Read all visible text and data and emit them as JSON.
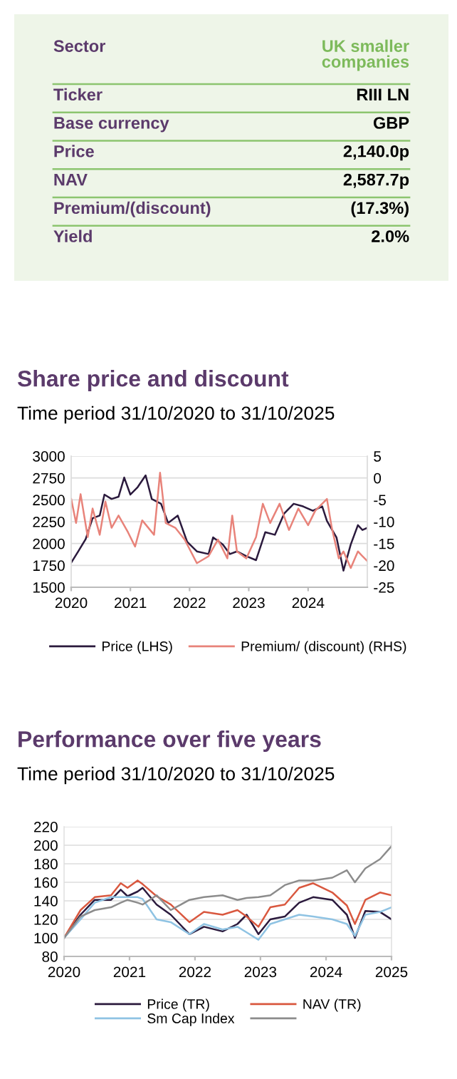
{
  "chart_data": [
    {
      "type": "other",
      "categories": [
        "Sector",
        "Ticker",
        "Base currency",
        "Price",
        "NAV",
        "Premium/(discount)",
        "Yield"
      ],
      "value_labels": [
        "UK smaller\ncompanies",
        "RIII LN",
        "GBP",
        "2,140.0p",
        "2,587.7p",
        "(17.3%)",
        "2.0%"
      ]
    },
    {
      "type": "line",
      "title": "Share price and discount",
      "subtitle": "Time period 31/10/2020 to 31/10/2025",
      "xlim": [
        "2020-10-31",
        "2025-10-31"
      ],
      "xticks": [
        {
          "value": "2020-10-31",
          "label": "2020"
        },
        {
          "value": "2021-10-31",
          "label": "2021"
        },
        {
          "value": "2022-10-31",
          "label": "2022"
        },
        {
          "value": "2023-10-31",
          "label": "2023"
        },
        {
          "value": "2024-10-31",
          "label": "2024"
        }
      ],
      "ylim": [
        1500,
        3000
      ],
      "yticks": [
        1500,
        1750,
        2000,
        2250,
        2500,
        2750,
        3000
      ],
      "y2lim": [
        -25,
        5
      ],
      "y2ticks": [
        -25,
        -20,
        -15,
        -10,
        -5,
        0,
        5
      ],
      "grid": "y",
      "legend": "bottom",
      "series": [
        {
          "name": "Price (LHS)",
          "color": "#2b1a3d",
          "x": [
            "2020-10-31",
            "2020-12-15",
            "2021-01-28",
            "2021-03-12",
            "2021-04-25",
            "2021-05-24",
            "2021-07-07",
            "2021-08-19",
            "2021-09-23",
            "2021-10-31",
            "2021-12-15",
            "2022-02-02",
            "2022-03-12",
            "2022-05-08",
            "2022-06-21",
            "2022-08-19",
            "2022-10-16",
            "2022-12-15",
            "2023-02-25",
            "2023-03-25",
            "2023-05-24",
            "2023-07-07",
            "2023-08-19",
            "2023-10-16",
            "2023-12-15",
            "2024-02-10",
            "2024-04-09",
            "2024-06-06",
            "2024-08-03",
            "2024-09-30",
            "2024-11-29",
            "2025-01-26",
            "2025-02-24",
            "2025-04-24",
            "2025-06-06",
            "2025-07-21",
            "2025-09-03",
            "2025-10-01",
            "2025-10-31"
          ],
          "values": [
            1780,
            1915,
            2050,
            2290,
            2320,
            2560,
            2510,
            2535,
            2755,
            2560,
            2645,
            2780,
            2510,
            2455,
            2235,
            2320,
            2020,
            1910,
            1880,
            2070,
            1990,
            1880,
            1910,
            1855,
            1810,
            2130,
            2100,
            2345,
            2455,
            2425,
            2375,
            2425,
            2260,
            2070,
            1690,
            1990,
            2210,
            2155,
            2180
          ]
        },
        {
          "name": "Premium/ (discount) (RHS)",
          "color": "#e8837a",
          "axis": "y2",
          "x": [
            "2020-10-31",
            "2020-11-30",
            "2020-12-28",
            "2021-02-10",
            "2021-03-12",
            "2021-04-25",
            "2021-05-30",
            "2021-07-07",
            "2021-08-19",
            "2021-10-16",
            "2021-11-29",
            "2022-01-12",
            "2022-03-26",
            "2022-05-02",
            "2022-06-06",
            "2022-08-04",
            "2022-10-01",
            "2022-12-15",
            "2023-02-25",
            "2023-04-24",
            "2023-06-21",
            "2023-07-21",
            "2023-08-19",
            "2023-10-16",
            "2023-12-15",
            "2024-01-26",
            "2024-03-11",
            "2024-05-08",
            "2024-07-05",
            "2024-09-01",
            "2024-10-31",
            "2024-12-14",
            "2025-02-24",
            "2025-03-26",
            "2025-05-08",
            "2025-06-06",
            "2025-07-21",
            "2025-09-03",
            "2025-10-01",
            "2025-10-31"
          ],
          "values": [
            -4.8,
            -10.3,
            -3.7,
            -13.5,
            -7.0,
            -13.0,
            -5.4,
            -11.4,
            -8.6,
            -12.4,
            -15.7,
            -9.7,
            -13.0,
            1.2,
            -10.3,
            -11.4,
            -14.1,
            -19.5,
            -17.9,
            -14.1,
            -18.4,
            -8.6,
            -16.8,
            -18.4,
            -13.5,
            -5.9,
            -10.3,
            -5.9,
            -11.9,
            -7.0,
            -10.8,
            -7.5,
            -4.8,
            -11.4,
            -18.4,
            -16.8,
            -20.6,
            -16.8,
            -17.9,
            -19.0
          ]
        }
      ]
    },
    {
      "type": "line",
      "title": "Performance over five years",
      "subtitle": "Time period 31/10/2020 to 31/10/2025",
      "x": [
        "2020-10-31",
        "2021-01-31",
        "2021-04-20",
        "2021-07-20",
        "2021-09-12",
        "2021-10-20",
        "2021-12-15",
        "2022-01-12",
        "2022-03-31",
        "2022-06-18",
        "2022-09-30",
        "2022-12-20",
        "2023-04-03",
        "2023-06-25",
        "2023-08-15",
        "2023-10-20",
        "2023-12-25",
        "2024-03-15",
        "2024-06-03",
        "2024-08-20",
        "2024-12-05",
        "2025-02-24",
        "2025-04-10",
        "2025-06-07",
        "2025-08-28",
        "2025-10-31"
      ],
      "xlim": [
        "2020-10-31",
        "2025-10-31"
      ],
      "xticks": [
        {
          "value": "2020-10-31",
          "label": "2020"
        },
        {
          "value": "2021-10-31",
          "label": "2021"
        },
        {
          "value": "2022-10-31",
          "label": "2022"
        },
        {
          "value": "2023-10-31",
          "label": "2023"
        },
        {
          "value": "2024-10-31",
          "label": "2024"
        },
        {
          "value": "2025-10-31",
          "label": "2025"
        }
      ],
      "ylim": [
        80,
        220
      ],
      "yticks": [
        80,
        100,
        120,
        140,
        160,
        180,
        200,
        220
      ],
      "grid": "y",
      "legend": "bottom",
      "series": [
        {
          "name": "Price (TR)",
          "color": "#2b1a3d",
          "values": [
            100,
            125,
            141,
            141,
            152,
            145,
            150,
            154,
            136,
            125,
            104,
            112,
            107,
            115,
            125,
            104,
            120,
            123,
            138,
            144,
            141,
            125,
            100,
            129,
            128,
            120
          ]
        },
        {
          "name": "NAV (TR)",
          "color": "#d9583f",
          "values": [
            100,
            130,
            144,
            146,
            159,
            154,
            162,
            158,
            145,
            136,
            117,
            128,
            125,
            130,
            123,
            112,
            133,
            136,
            154,
            159,
            149,
            135,
            115,
            141,
            149,
            146
          ]
        },
        {
          "name": "Sm Cap Index",
          "color": "#8fc3e3",
          "values": [
            100,
            120,
            138,
            144,
            144,
            144,
            144,
            142,
            120,
            117,
            104,
            115,
            109,
            112,
            106,
            98,
            115,
            120,
            125,
            123,
            120,
            115,
            102,
            125,
            128,
            133
          ]
        },
        {
          "color": "#8c8c8c",
          "values": [
            100,
            123,
            130,
            133,
            138,
            141,
            138,
            136,
            146,
            130,
            141,
            144,
            146,
            141,
            143,
            144,
            146,
            157,
            162,
            162,
            165,
            173,
            160,
            175,
            185,
            199
          ]
        }
      ]
    }
  ]
}
